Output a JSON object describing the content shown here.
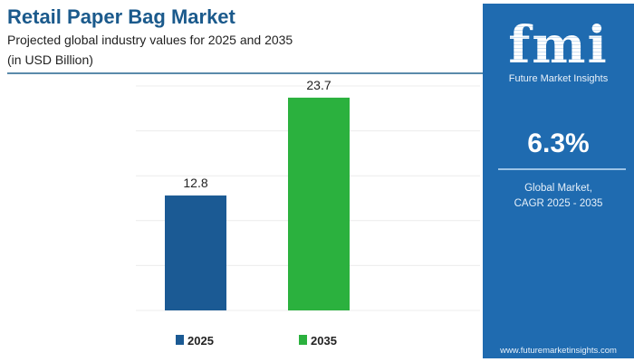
{
  "header": {
    "title": "Retail Paper Bag Market",
    "subtitle": "Projected global industry values for 2025 and 2035",
    "unit": "(in USD Billion)"
  },
  "panel": {
    "logo_text": "fmi",
    "brand": "Future Market Insights",
    "cagr": "6.3%",
    "cagr_label_1": "Global Market,",
    "cagr_label_2": "CAGR 2025 - 2035",
    "url": "www.futuremarketinsights.com",
    "color": "#1f6bb0"
  },
  "chart_data": {
    "type": "bar",
    "title": "Retail Paper Bag Market",
    "categories": [
      "2025",
      "2035"
    ],
    "values": [
      12.8,
      23.7
    ],
    "data_labels": [
      "12.8",
      "23.7"
    ],
    "colors": [
      "#1b5a94",
      "#2bb13e"
    ],
    "ylim": [
      0,
      25
    ],
    "grid": true,
    "legend": [
      "2025",
      "2035"
    ],
    "legend_position": "bottom"
  }
}
